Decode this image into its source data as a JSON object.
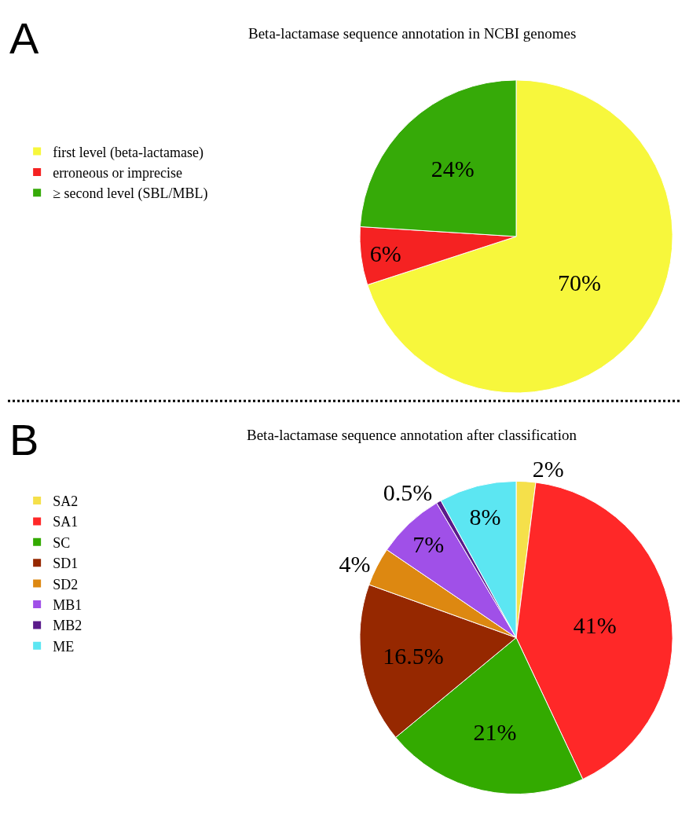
{
  "chart_data": [
    {
      "type": "pie",
      "title": "Beta-lactamase sequence annotation in NCBI genomes",
      "annotations": [
        "A"
      ],
      "categories": [
        "first level (beta-lactamase)",
        "erroneous or imprecise",
        "≥ second level (SBL/MBL)"
      ],
      "values": [
        70,
        6,
        24
      ],
      "value_labels": [
        "70%",
        "6%",
        "24%"
      ],
      "colors": [
        "#f7f73c",
        "#f52222",
        "#36aa08"
      ],
      "legend": "left"
    },
    {
      "type": "pie",
      "title": "Beta-lactamase sequence annotation after classification",
      "annotations": [
        "B"
      ],
      "categories": [
        "SA2",
        "SA1",
        "SC",
        "SD1",
        "SD2",
        "MB1",
        "MB2",
        "ME"
      ],
      "values": [
        2,
        41,
        21,
        16.5,
        4,
        7,
        0.5,
        8
      ],
      "value_labels": [
        "2%",
        "41%",
        "21%",
        "16.5%",
        "4%",
        "7%",
        "0.5%",
        "8%"
      ],
      "colors": [
        "#f5e04a",
        "#ff2828",
        "#33aa00",
        "#962800",
        "#dd8811",
        "#a050e8",
        "#5a1a8a",
        "#5ce6f2"
      ],
      "legend": "left"
    }
  ]
}
